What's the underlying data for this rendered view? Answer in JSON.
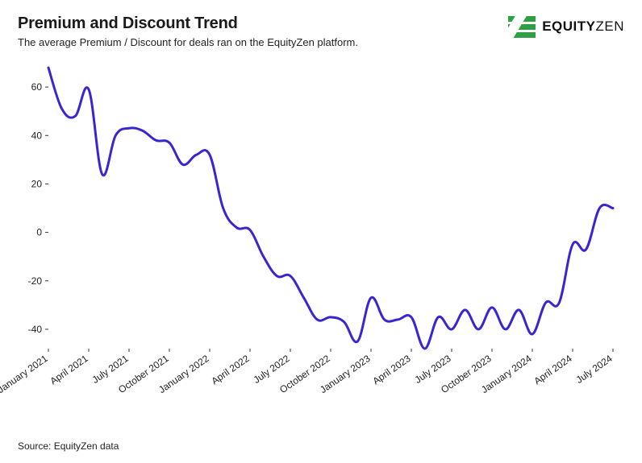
{
  "header": {
    "title": "Premium and Discount Trend",
    "subtitle": "The average Premium / Discount for deals ran on the EquityZen platform."
  },
  "logo": {
    "brand_text_a": "EQUITY",
    "brand_text_b": "ZEN",
    "bar_color": "#2ea043",
    "text_color": "#111111"
  },
  "chart": {
    "type": "line",
    "line_color": "#3826d1",
    "line_width": 3,
    "background_color": "#ffffff",
    "ylim": [
      -48,
      70
    ],
    "yticks": [
      -40,
      -20,
      0,
      20,
      40,
      60
    ],
    "ytick_fontsize": 12,
    "xtick_fontsize": 12,
    "xtick_rotation": -35,
    "x_labels": [
      "January 2021",
      "April 2021",
      "July 2021",
      "October 2021",
      "January 2022",
      "April 2022",
      "July 2022",
      "October 2022",
      "January 2023",
      "April 2023",
      "July 2023",
      "October 2023",
      "January 2024",
      "April 2024",
      "July 2024"
    ],
    "x_label_index_positions": [
      0,
      3,
      6,
      9,
      12,
      15,
      18,
      21,
      24,
      27,
      30,
      33,
      36,
      39,
      42
    ],
    "values": [
      68,
      51,
      48,
      59,
      24,
      40,
      43,
      42,
      38,
      37,
      28,
      32,
      32,
      10,
      2,
      1,
      -10,
      -18,
      -18,
      -27,
      -36,
      -35,
      -37,
      -45,
      -27,
      -36,
      -36,
      -35,
      -48,
      -35,
      -40,
      -32,
      -40,
      -31,
      -40,
      -32,
      -42,
      -29,
      -29,
      -5,
      -7,
      10,
      10
    ]
  },
  "footer": {
    "source": "Source: EquityZen data"
  }
}
